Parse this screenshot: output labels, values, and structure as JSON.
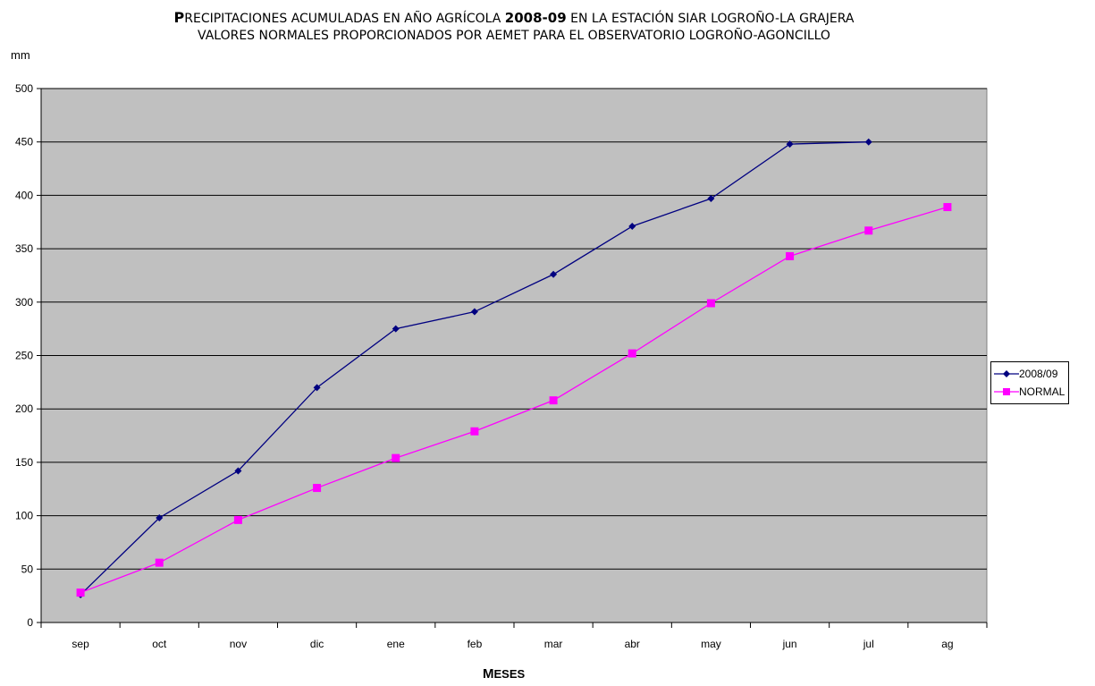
{
  "header": {
    "title_line1_cap": "P",
    "title_line1_rest": "RECIPITACIONES ACUMULADAS EN AÑO AGRÍCOLA ",
    "title_line1_year": "2008-09",
    "title_line1_tail": " EN LA ESTACIÓN SIAR LOGROÑO-LA GRAJERA",
    "title_line2": "VALORES NORMALES PROPORCIONADOS POR AEMET PARA EL OBSERVATORIO LOGROÑO-AGONCILLO"
  },
  "chart_data": {
    "type": "line",
    "ylabel": "mm",
    "xlabel_cap": "M",
    "xlabel_rest": "ESES",
    "categories": [
      "sep",
      "oct",
      "nov",
      "dic",
      "ene",
      "feb",
      "mar",
      "abr",
      "may",
      "jun",
      "jul",
      "ag"
    ],
    "ylim": [
      0,
      500
    ],
    "yticks": [
      0,
      50,
      100,
      150,
      200,
      250,
      300,
      350,
      400,
      450,
      500
    ],
    "grid": true,
    "legend_position": "right",
    "plot_background": "#c0c0c0",
    "series": [
      {
        "name": "2008/09",
        "color": "#000080",
        "marker": "diamond",
        "values": [
          26,
          98,
          142,
          220,
          275,
          291,
          326,
          371,
          397,
          448,
          450,
          null
        ]
      },
      {
        "name": "NORMAL",
        "color": "#ff00ff",
        "marker": "square",
        "values": [
          28,
          56,
          96,
          126,
          154,
          179,
          208,
          252,
          299,
          343,
          367,
          389
        ]
      }
    ]
  }
}
